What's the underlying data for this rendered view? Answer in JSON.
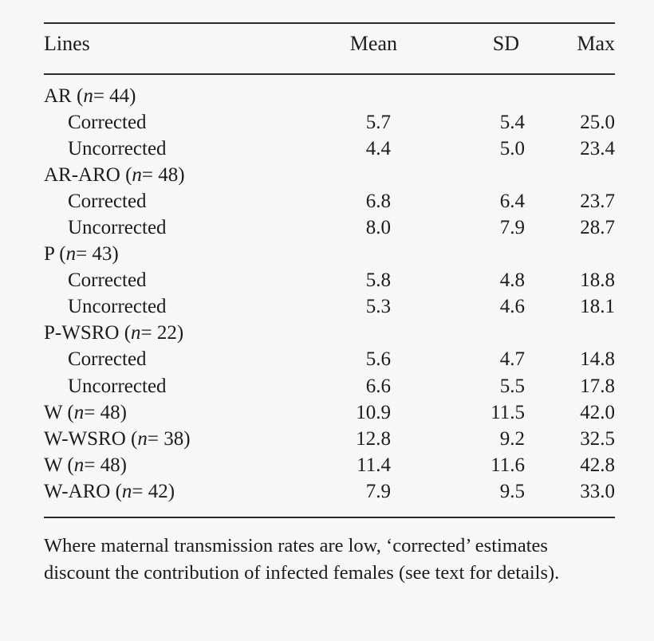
{
  "table": {
    "headers": {
      "lines": "Lines",
      "mean": "Mean",
      "sd": "SD",
      "max": "Max"
    },
    "rows": [
      {
        "type": "group",
        "line": "AR",
        "n": "n",
        "count": "= 44)"
      },
      {
        "type": "sub",
        "label": "Corrected",
        "mean": "5.7",
        "sd": "5.4",
        "max": "25.0"
      },
      {
        "type": "sub",
        "label": "Uncorrected",
        "mean": "4.4",
        "sd": "5.0",
        "max": "23.4"
      },
      {
        "type": "group",
        "line": "AR-ARO",
        "n": "n",
        "count": "= 48)"
      },
      {
        "type": "sub",
        "label": "Corrected",
        "mean": "6.8",
        "sd": "6.4",
        "max": "23.7"
      },
      {
        "type": "sub",
        "label": "Uncorrected",
        "mean": "8.0",
        "sd": "7.9",
        "max": "28.7"
      },
      {
        "type": "group",
        "line": "P",
        "n": "n",
        "count": "= 43)"
      },
      {
        "type": "sub",
        "label": "Corrected",
        "mean": "5.8",
        "sd": "4.8",
        "max": "18.8"
      },
      {
        "type": "sub",
        "label": "Uncorrected",
        "mean": "5.3",
        "sd": "4.6",
        "max": "18.1"
      },
      {
        "type": "group",
        "line": "P-WSRO",
        "n": "n",
        "count": "= 22)"
      },
      {
        "type": "sub",
        "label": "Corrected",
        "mean": "5.6",
        "sd": "4.7",
        "max": "14.8"
      },
      {
        "type": "sub",
        "label": "Uncorrected",
        "mean": "6.6",
        "sd": "5.5",
        "max": "17.8"
      },
      {
        "type": "line",
        "line": "W",
        "n": "n",
        "count": "= 48)",
        "mean": "10.9",
        "sd": "11.5",
        "max": "42.0"
      },
      {
        "type": "line",
        "line": "W-WSRO",
        "n": "n",
        "count": "= 38)",
        "mean": "12.8",
        "sd": "9.2",
        "max": "32.5"
      },
      {
        "type": "line",
        "line": "W",
        "n": "n",
        "count": "= 48)",
        "mean": "11.4",
        "sd": "11.6",
        "max": "42.8"
      },
      {
        "type": "line",
        "line": "W-ARO",
        "n": "n",
        "count": "= 42)",
        "mean": "7.9",
        "sd": "9.5",
        "max": "33.0"
      }
    ]
  },
  "footnote": "Where maternal transmission rates are low, ‘corrected’ estimates discount the contribution of infected females (see text for details)."
}
